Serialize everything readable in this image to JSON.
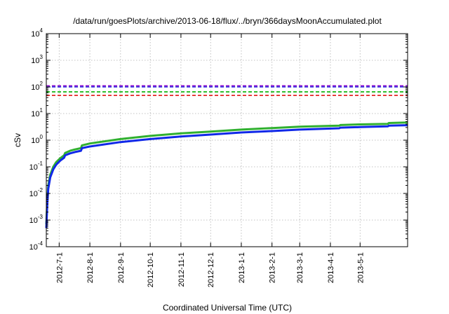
{
  "chart_data": {
    "type": "line",
    "title": "/data/run/goesPlots/archive/2013-06-18/flux/../bryn/366daysMoonAccumulated.plot",
    "xlabel": "Coordinated Universal Time (UTC)",
    "ylabel": "cSv",
    "yscale": "log",
    "ylim": [
      0.0001,
      10000
    ],
    "xlim": [
      "2012-06-18",
      "2013-06-18"
    ],
    "grid": true,
    "y_ticks": [
      {
        "base": "10",
        "exp": "-4",
        "value": 0.0001
      },
      {
        "base": "10",
        "exp": "-3",
        "value": 0.001
      },
      {
        "base": "10",
        "exp": "-2",
        "value": 0.01
      },
      {
        "base": "10",
        "exp": "-1",
        "value": 0.1
      },
      {
        "base": "10",
        "exp": "0",
        "value": 1
      },
      {
        "base": "10",
        "exp": "1",
        "value": 10
      },
      {
        "base": "10",
        "exp": "2",
        "value": 100
      },
      {
        "base": "10",
        "exp": "3",
        "value": 1000
      },
      {
        "base": "10",
        "exp": "4",
        "value": 10000
      }
    ],
    "x_ticks": [
      {
        "label": "2012-7-1",
        "date": "2012-07-01"
      },
      {
        "label": "2012-8-1",
        "date": "2012-08-01"
      },
      {
        "label": "2012-9-1",
        "date": "2012-09-01"
      },
      {
        "label": "2012-10-1",
        "date": "2012-10-01"
      },
      {
        "label": "2012-11-1",
        "date": "2012-11-01"
      },
      {
        "label": "2012-12-1",
        "date": "2012-12-01"
      },
      {
        "label": "2013-1-1",
        "date": "2013-01-01"
      },
      {
        "label": "2013-2-1",
        "date": "2013-02-01"
      },
      {
        "label": "2013-3-1",
        "date": "2013-03-01"
      },
      {
        "label": "2013-4-1",
        "date": "2013-04-01"
      },
      {
        "label": "2013-5-1",
        "date": "2013-05-01"
      }
    ],
    "reference_lines": [
      {
        "y": 110,
        "color": "#8b00c8"
      },
      {
        "y": 100,
        "color": "#2020e0"
      },
      {
        "y": 65,
        "color": "#00b000"
      },
      {
        "y": 48,
        "color": "#e00000"
      }
    ],
    "series": [
      {
        "color": "#30b030",
        "x": [
          "2012-06-18",
          "2012-06-19",
          "2012-06-20",
          "2012-06-22",
          "2012-06-25",
          "2012-06-28",
          "2012-07-02",
          "2012-07-06",
          "2012-07-07",
          "2012-07-12",
          "2012-07-17",
          "2012-07-23",
          "2012-07-24",
          "2012-08-01",
          "2012-09-01",
          "2012-10-01",
          "2012-11-01",
          "2012-12-01",
          "2013-01-01",
          "2013-02-01",
          "2013-03-01",
          "2013-04-10",
          "2013-04-11",
          "2013-05-01",
          "2013-05-29",
          "2013-05-30",
          "2013-06-18"
        ],
        "y": [
          0.0007,
          0.005,
          0.02,
          0.05,
          0.1,
          0.15,
          0.21,
          0.27,
          0.33,
          0.4,
          0.45,
          0.5,
          0.64,
          0.75,
          1.1,
          1.45,
          1.8,
          2.1,
          2.5,
          2.85,
          3.2,
          3.5,
          3.7,
          3.9,
          4.1,
          4.4,
          4.6
        ]
      },
      {
        "color": "#1028e8",
        "x": [
          "2012-06-18",
          "2012-06-19",
          "2012-06-20",
          "2012-06-22",
          "2012-06-25",
          "2012-06-28",
          "2012-07-02",
          "2012-07-06",
          "2012-07-07",
          "2012-07-12",
          "2012-07-17",
          "2012-07-23",
          "2012-07-24",
          "2012-08-01",
          "2012-09-01",
          "2012-10-01",
          "2012-11-01",
          "2012-12-01",
          "2013-01-01",
          "2013-02-01",
          "2013-03-01",
          "2013-04-10",
          "2013-04-11",
          "2013-05-01",
          "2013-05-29",
          "2013-05-30",
          "2013-06-18"
        ],
        "y": [
          0.0005,
          0.004,
          0.015,
          0.04,
          0.08,
          0.12,
          0.17,
          0.22,
          0.27,
          0.32,
          0.36,
          0.4,
          0.5,
          0.58,
          0.85,
          1.1,
          1.38,
          1.62,
          1.95,
          2.2,
          2.5,
          2.8,
          2.95,
          3.1,
          3.3,
          3.5,
          3.65
        ]
      }
    ]
  }
}
